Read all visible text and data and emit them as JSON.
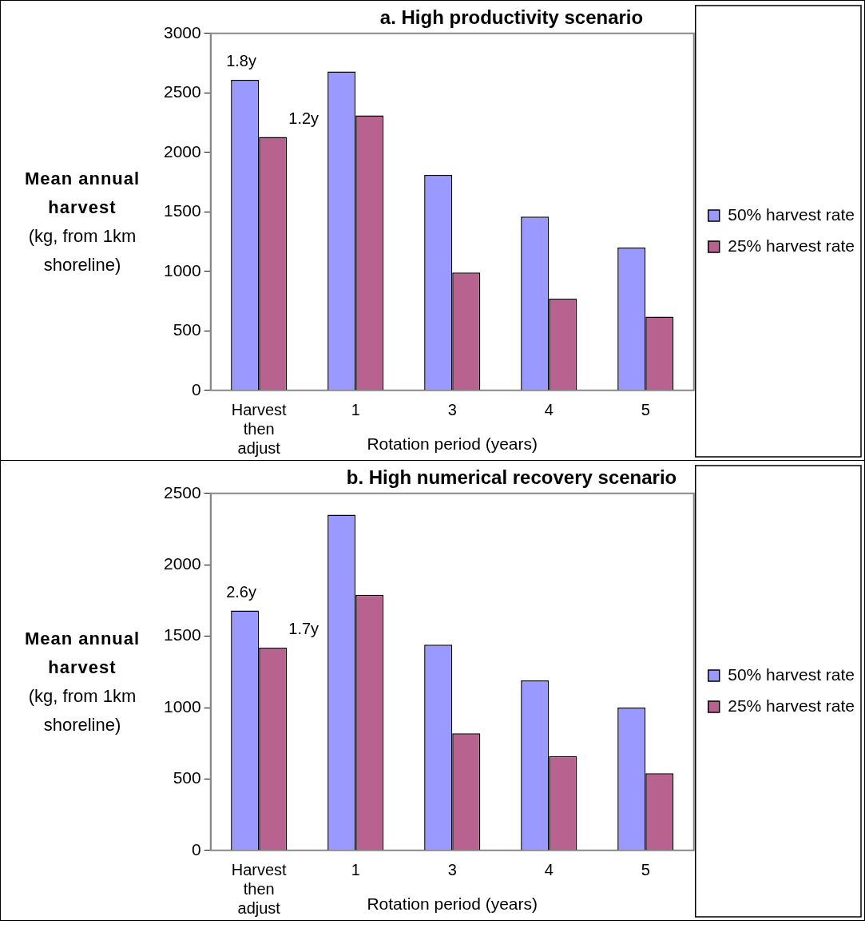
{
  "chart_data": [
    {
      "type": "bar",
      "title": "a. High productivity scenario",
      "xlabel": "Rotation period (years)",
      "ylabel": "Mean annual harvest (kg, from 1km shoreline)",
      "categories": [
        "Harvest then adjust",
        "1",
        "3",
        "4",
        "5"
      ],
      "series": [
        {
          "name": "50% harvest rate",
          "color": "#9999ff",
          "values": [
            2610,
            2680,
            1810,
            1460,
            1200
          ]
        },
        {
          "name": "25% harvest rate",
          "color": "#b8638f",
          "values": [
            2130,
            2310,
            990,
            770,
            620
          ]
        }
      ],
      "ylim": [
        0,
        3000
      ],
      "yticks": [
        0,
        500,
        1000,
        1500,
        2000,
        2500,
        3000
      ],
      "grid": false,
      "legend": "right",
      "annotations": [
        {
          "text": "1.8y",
          "x": "Harvest then adjust",
          "y": 2610
        },
        {
          "text": "1.2y",
          "x": "Harvest then adjust",
          "y": 2130
        }
      ]
    },
    {
      "type": "bar",
      "title": "b. High numerical recovery scenario",
      "xlabel": "Rotation period (years)",
      "ylabel": "Mean annual harvest (kg, from 1km shoreline)",
      "categories": [
        "Harvest then adjust",
        "1",
        "3",
        "4",
        "5"
      ],
      "series": [
        {
          "name": "50% harvest rate",
          "color": "#9999ff",
          "values": [
            1680,
            2350,
            1440,
            1190,
            1000
          ]
        },
        {
          "name": "25% harvest rate",
          "color": "#b8638f",
          "values": [
            1420,
            1790,
            820,
            660,
            540
          ]
        }
      ],
      "ylim": [
        0,
        2500
      ],
      "yticks": [
        0,
        500,
        1000,
        1500,
        2000,
        2500
      ],
      "grid": false,
      "legend": "right",
      "annotations": [
        {
          "text": "2.6y",
          "x": "Harvest then adjust",
          "y": 1680
        },
        {
          "text": "1.7y",
          "x": "Harvest then adjust",
          "y": 1420
        }
      ]
    }
  ]
}
